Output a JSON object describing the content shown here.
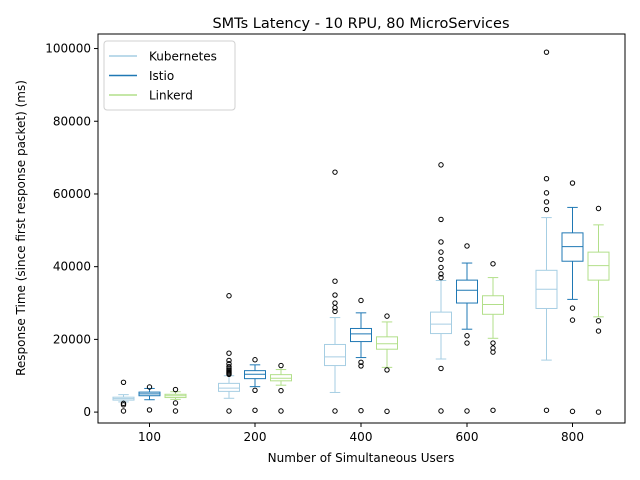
{
  "chart_data": {
    "type": "box",
    "title": "SMTs Latency - 10 RPU, 80 MicroServices",
    "xlabel": "Number of Simultaneous Users",
    "ylabel": "Response Time (since first response packet) (ms)",
    "categories": [
      "100",
      "200",
      "400",
      "600",
      "800"
    ],
    "ylim": [
      -3000,
      104000
    ],
    "yticks": [
      0,
      20000,
      40000,
      60000,
      80000,
      100000
    ],
    "ytick_labels": [
      "0",
      "20000",
      "40000",
      "60000",
      "80000",
      "100000"
    ],
    "legend_position": "top-left",
    "grid": false,
    "series": [
      {
        "name": "Kubernetes",
        "color": "#a6cee3",
        "boxes": [
          {
            "whisker_low": 2800,
            "q1": 3300,
            "median": 3700,
            "q3": 4100,
            "whisker_high": 4800,
            "outliers": [
              8200,
              2400,
              2000,
              300
            ]
          },
          {
            "whisker_low": 3800,
            "q1": 5700,
            "median": 6600,
            "q3": 7900,
            "whisker_high": 10000,
            "outliers": [
              32000,
              16200,
              14200,
              13300,
              12500,
              12000,
              11600,
              11300,
              11000,
              10700,
              10400,
              300
            ]
          },
          {
            "whisker_low": 5400,
            "q1": 12800,
            "median": 15200,
            "q3": 18600,
            "whisker_high": 26000,
            "outliers": [
              66000,
              36000,
              32200,
              30000,
              28700,
              27700,
              300
            ]
          },
          {
            "whisker_low": 14600,
            "q1": 21600,
            "median": 24200,
            "q3": 27500,
            "whisker_high": 36200,
            "outliers": [
              68000,
              53000,
              46800,
              44000,
              42000,
              39800,
              38000,
              37000,
              12000,
              300
            ]
          },
          {
            "whisker_low": 14300,
            "q1": 28500,
            "median": 33800,
            "q3": 39000,
            "whisker_high": 53500,
            "outliers": [
              99000,
              64200,
              60300,
              57800,
              55700,
              500
            ]
          }
        ]
      },
      {
        "name": "Istio",
        "color": "#1f78b4",
        "boxes": [
          {
            "whisker_low": 3400,
            "q1": 4500,
            "median": 5000,
            "q3": 5500,
            "whisker_high": 6500,
            "outliers": [
              6900,
              600
            ]
          },
          {
            "whisker_low": 7000,
            "q1": 9200,
            "median": 10400,
            "q3": 11400,
            "whisker_high": 13000,
            "outliers": [
              14400,
              6000,
              500
            ]
          },
          {
            "whisker_low": 15000,
            "q1": 19400,
            "median": 21500,
            "q3": 23000,
            "whisker_high": 27300,
            "outliers": [
              30700,
              13700,
              12700,
              400
            ]
          },
          {
            "whisker_low": 22800,
            "q1": 30000,
            "median": 33500,
            "q3": 36300,
            "whisker_high": 41000,
            "outliers": [
              45700,
              21000,
              19000,
              300
            ]
          },
          {
            "whisker_low": 31000,
            "q1": 41500,
            "median": 45500,
            "q3": 49300,
            "whisker_high": 56300,
            "outliers": [
              63000,
              28600,
              25300,
              200
            ]
          }
        ]
      },
      {
        "name": "Linkerd",
        "color": "#b2df8a",
        "boxes": [
          {
            "whisker_low": 3500,
            "q1": 4000,
            "median": 4500,
            "q3": 4900,
            "whisker_high": 5600,
            "outliers": [
              6200,
              2500,
              300
            ]
          },
          {
            "whisker_low": 7400,
            "q1": 8600,
            "median": 9300,
            "q3": 10300,
            "whisker_high": 11700,
            "outliers": [
              12800,
              5900,
              300
            ]
          },
          {
            "whisker_low": 12300,
            "q1": 17300,
            "median": 18800,
            "q3": 20700,
            "whisker_high": 24800,
            "outliers": [
              26400,
              11600,
              200
            ]
          },
          {
            "whisker_low": 20300,
            "q1": 26900,
            "median": 29600,
            "q3": 32000,
            "whisker_high": 37000,
            "outliers": [
              40800,
              19000,
              17600,
              16500,
              500
            ]
          },
          {
            "whisker_low": 26200,
            "q1": 36300,
            "median": 40300,
            "q3": 44000,
            "whisker_high": 51500,
            "outliers": [
              56000,
              25100,
              22300,
              0
            ]
          }
        ]
      }
    ]
  }
}
